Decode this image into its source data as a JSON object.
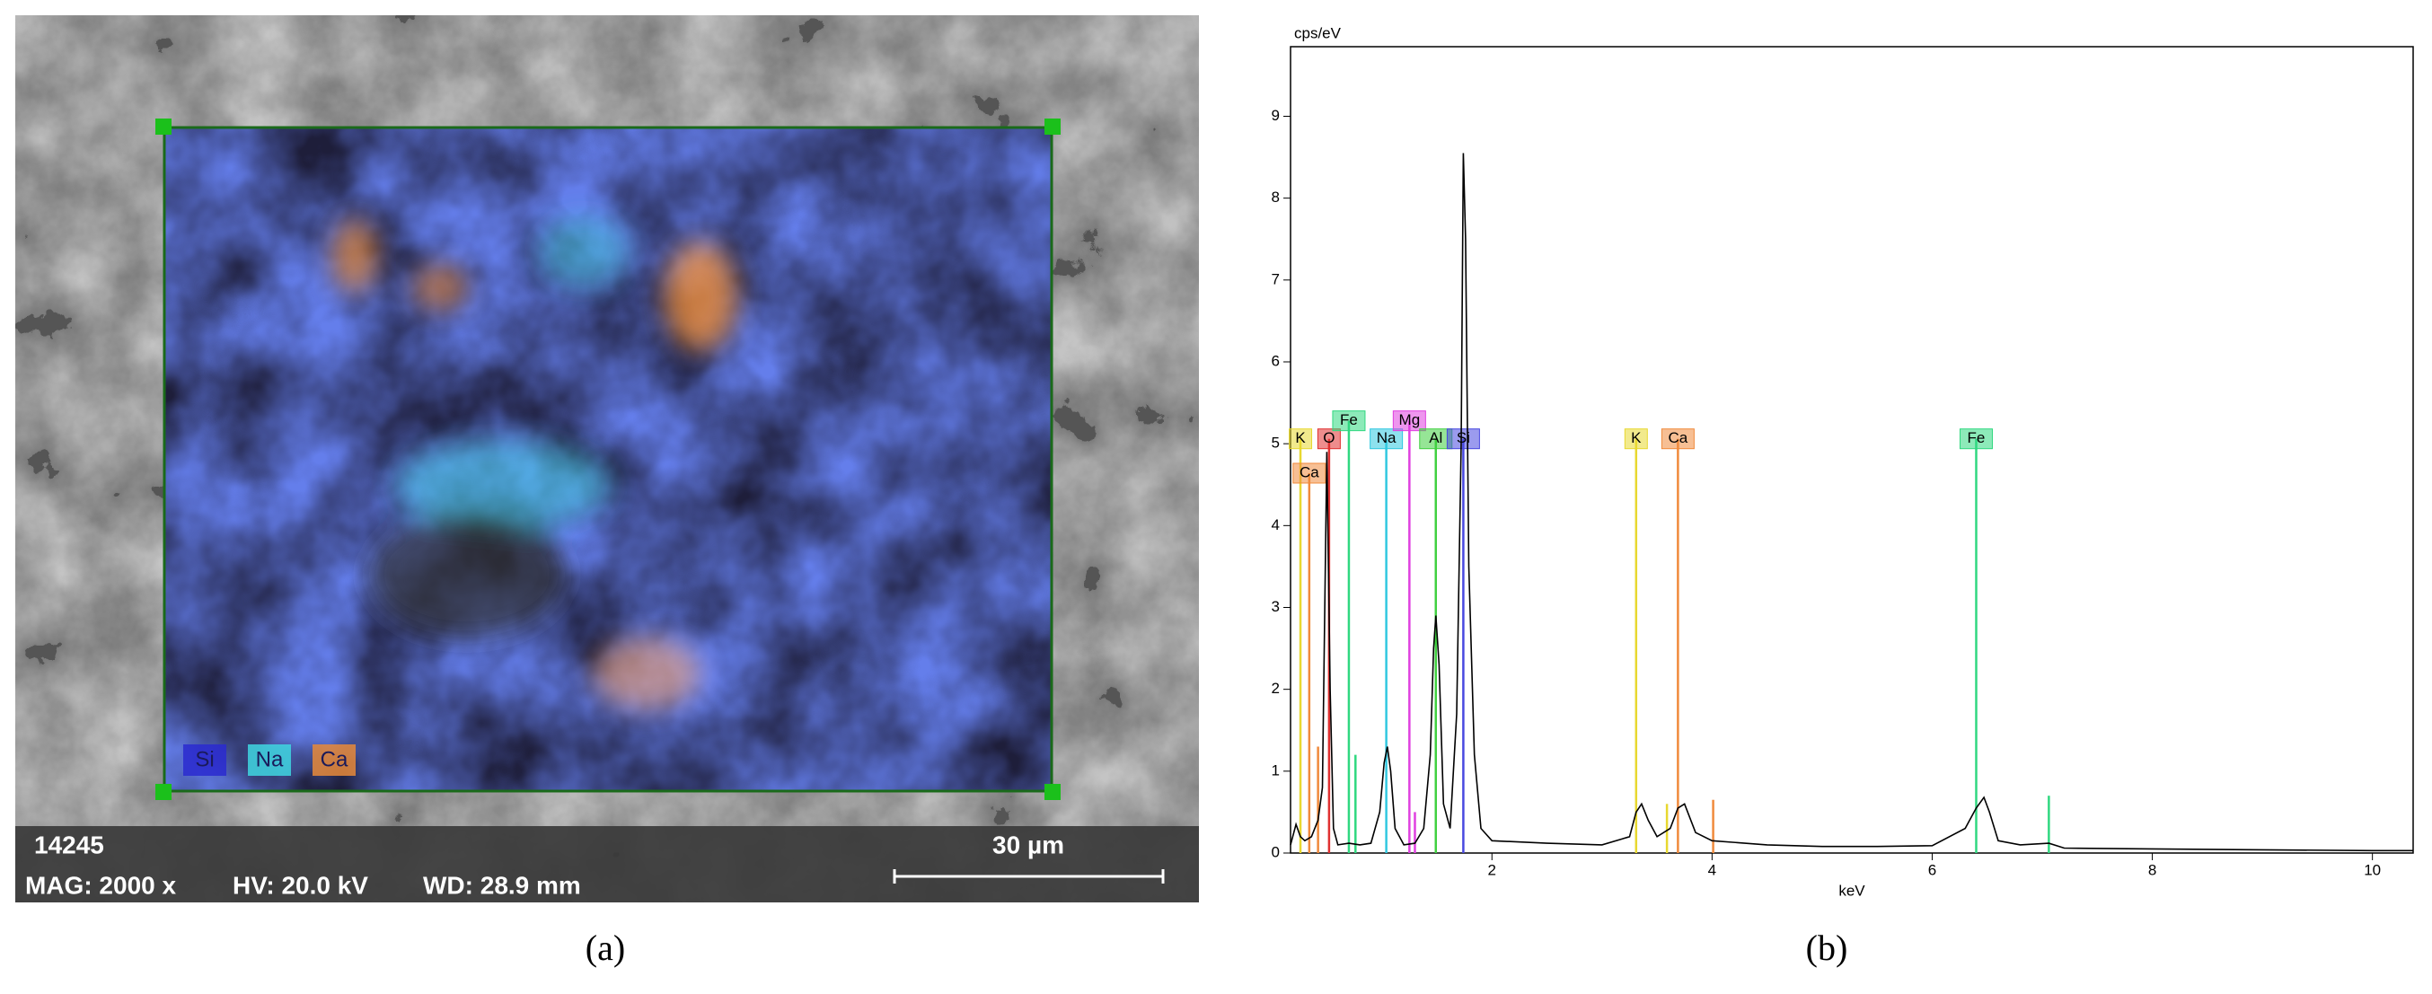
{
  "image_panel": {
    "label_id": "14245",
    "magnification": "MAG: 2000 x",
    "voltage": "HV: 20.0 kV",
    "working_distance": "WD: 28.9 mm",
    "scale_bar": "30 µm",
    "legend": [
      {
        "name": "Si",
        "color": "#2a2ad0"
      },
      {
        "name": "Na",
        "color": "#3fd6e0"
      },
      {
        "name": "Ca",
        "color": "#e88a3a"
      }
    ],
    "caption": "(a)"
  },
  "chart_data": [
    {
      "type": "line",
      "caption": "(b)",
      "y_label": "cps/eV",
      "x_label": "keV",
      "xlim": [
        0.17,
        10.37
      ],
      "ylim": [
        0,
        9.85
      ],
      "xticks": [
        2,
        4,
        6,
        8,
        10
      ],
      "yticks": [
        0,
        1,
        2,
        3,
        4,
        5,
        6,
        7,
        8,
        9
      ],
      "color": "#000000",
      "x": [
        0.17,
        0.22,
        0.26,
        0.3,
        0.36,
        0.42,
        0.46,
        0.5,
        0.53,
        0.56,
        0.6,
        0.7,
        0.8,
        0.9,
        0.98,
        1.02,
        1.05,
        1.08,
        1.12,
        1.2,
        1.3,
        1.38,
        1.44,
        1.47,
        1.49,
        1.52,
        1.56,
        1.62,
        1.68,
        1.72,
        1.74,
        1.76,
        1.79,
        1.84,
        1.9,
        2.0,
        2.5,
        3.0,
        3.25,
        3.31,
        3.36,
        3.42,
        3.5,
        3.62,
        3.69,
        3.75,
        3.85,
        4.0,
        4.5,
        5.0,
        5.5,
        6.0,
        6.3,
        6.4,
        6.47,
        6.52,
        6.6,
        6.8,
        7.06,
        7.2,
        8,
        9,
        10,
        10.37
      ],
      "values": [
        0.1,
        0.35,
        0.2,
        0.15,
        0.2,
        0.4,
        0.8,
        4.9,
        2.0,
        0.3,
        0.1,
        0.12,
        0.1,
        0.12,
        0.5,
        1.1,
        1.3,
        1.0,
        0.3,
        0.1,
        0.12,
        0.3,
        1.2,
        2.5,
        2.9,
        2.3,
        0.6,
        0.3,
        1.7,
        5.0,
        8.55,
        7.5,
        3.5,
        1.2,
        0.3,
        0.15,
        0.12,
        0.1,
        0.2,
        0.5,
        0.6,
        0.4,
        0.2,
        0.3,
        0.55,
        0.6,
        0.25,
        0.15,
        0.1,
        0.08,
        0.08,
        0.09,
        0.3,
        0.55,
        0.68,
        0.5,
        0.15,
        0.1,
        0.12,
        0.06,
        0.05,
        0.04,
        0.03,
        0.03
      ],
      "element_markers": [
        {
          "label": "K",
          "x": 0.26,
          "y": 5.06,
          "color": "#e8d830"
        },
        {
          "label": "Ca",
          "x": 0.34,
          "y": 4.64,
          "color": "#f08a3c"
        },
        {
          "label": "O",
          "x": 0.52,
          "y": 5.06,
          "color": "#e03030"
        },
        {
          "label": "Fe",
          "x": 0.7,
          "y": 5.28,
          "color": "#30d880"
        },
        {
          "label": "Na",
          "x": 1.04,
          "y": 5.06,
          "color": "#30c8e0"
        },
        {
          "label": "Mg",
          "x": 1.25,
          "y": 5.28,
          "color": "#e040e0"
        },
        {
          "label": "Al",
          "x": 1.49,
          "y": 5.06,
          "color": "#40d040"
        },
        {
          "label": "Si",
          "x": 1.74,
          "y": 5.06,
          "color": "#4848e0"
        },
        {
          "label": "K",
          "x": 3.31,
          "y": 5.06,
          "color": "#e8d830"
        },
        {
          "label": "Ca",
          "x": 3.69,
          "y": 5.06,
          "color": "#f08a3c"
        },
        {
          "label": "Fe",
          "x": 6.4,
          "y": 5.06,
          "color": "#30d880"
        }
      ],
      "minor_lines": [
        {
          "x": 0.42,
          "y": 1.3,
          "color": "#f08a3c"
        },
        {
          "x": 0.76,
          "y": 1.2,
          "color": "#30d880"
        },
        {
          "x": 1.3,
          "y": 0.5,
          "color": "#e040e0"
        },
        {
          "x": 3.59,
          "y": 0.6,
          "color": "#e8d830"
        },
        {
          "x": 4.01,
          "y": 0.65,
          "color": "#f08a3c"
        },
        {
          "x": 7.06,
          "y": 0.7,
          "color": "#30d880"
        }
      ]
    }
  ]
}
